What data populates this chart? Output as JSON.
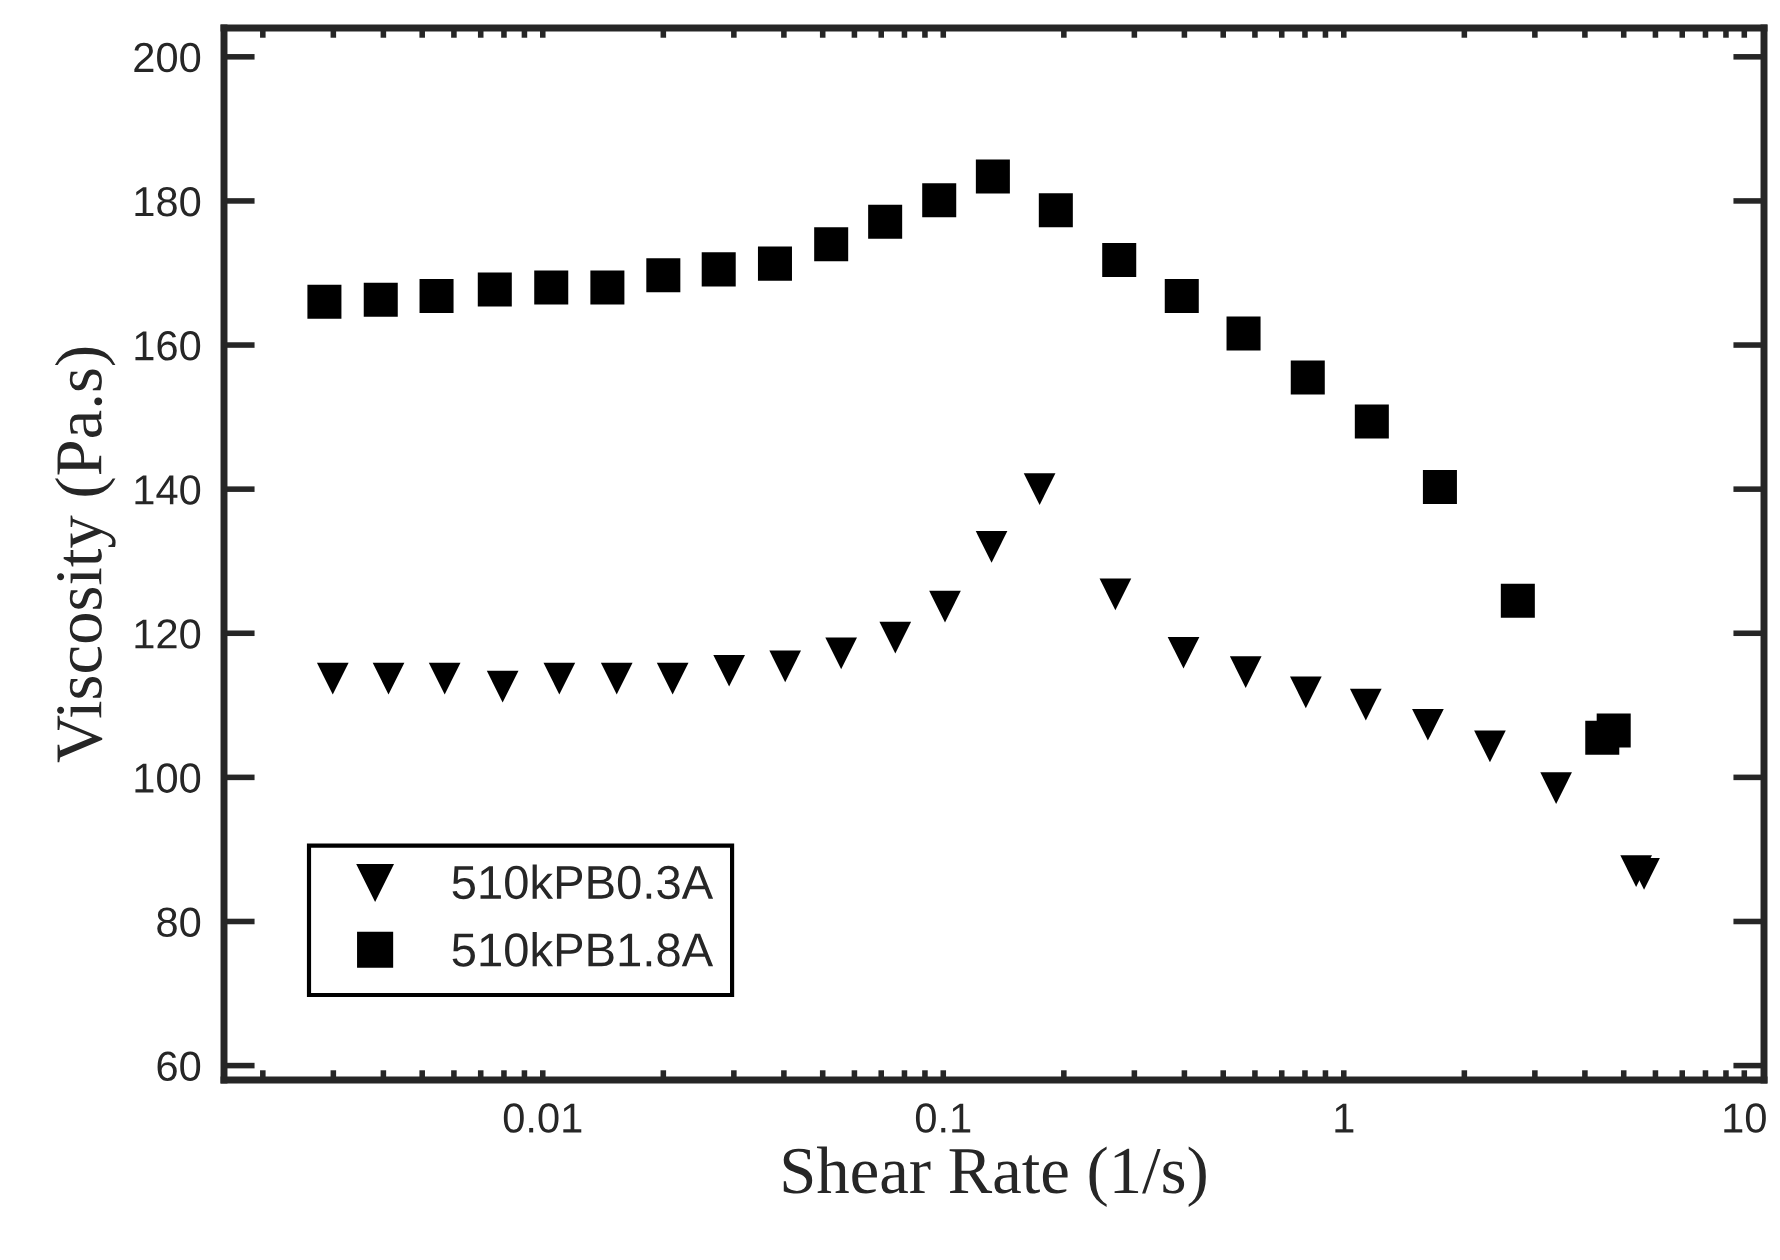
{
  "chart_data": {
    "type": "scatter",
    "xlabel": "Shear Rate (1/s)",
    "ylabel": "Viscosity (Pa.s)",
    "log": "x",
    "xlim": [
      0.0016,
      11.2
    ],
    "ylim": [
      58,
      204
    ],
    "xticks": [
      {
        "value": 0.002,
        "label": null
      },
      {
        "value": 0.003,
        "label": null
      },
      {
        "value": 0.004,
        "label": null
      },
      {
        "value": 0.005,
        "label": null
      },
      {
        "value": 0.006,
        "label": null
      },
      {
        "value": 0.007,
        "label": null
      },
      {
        "value": 0.008,
        "label": null
      },
      {
        "value": 0.009,
        "label": null
      },
      0.01,
      {
        "value": 0.02,
        "label": null
      },
      {
        "value": 0.03,
        "label": null
      },
      {
        "value": 0.04,
        "label": null
      },
      {
        "value": 0.05,
        "label": null
      },
      {
        "value": 0.06,
        "label": null
      },
      {
        "value": 0.07,
        "label": null
      },
      {
        "value": 0.08,
        "label": null
      },
      {
        "value": 0.09,
        "label": null
      },
      0.1,
      {
        "value": 0.2,
        "label": null
      },
      {
        "value": 0.3,
        "label": null
      },
      {
        "value": 0.4,
        "label": null
      },
      {
        "value": 0.5,
        "label": null
      },
      {
        "value": 0.6,
        "label": null
      },
      {
        "value": 0.7,
        "label": null
      },
      {
        "value": 0.8,
        "label": null
      },
      {
        "value": 0.9,
        "label": null
      },
      1,
      {
        "value": 2,
        "label": null
      },
      {
        "value": 3,
        "label": null
      },
      {
        "value": 4,
        "label": null
      },
      {
        "value": 5,
        "label": null
      },
      {
        "value": 6,
        "label": null
      },
      {
        "value": 7,
        "label": null
      },
      {
        "value": 8,
        "label": null
      },
      {
        "value": 9,
        "label": null
      },
      10
    ],
    "yticks": [
      60,
      80,
      100,
      120,
      140,
      160,
      180,
      200
    ],
    "grid": false,
    "legend": "bottom left",
    "series": [
      {
        "name": "510kPB0.3A",
        "color": "#000000",
        "marker": "triangle",
        "x": [
          0.00299,
          0.00412,
          0.00569,
          0.00794,
          0.011,
          0.0153,
          0.0211,
          0.0292,
          0.0403,
          0.0556,
          0.0759,
          0.101,
          0.132,
          0.174,
          0.269,
          0.398,
          0.569,
          0.804,
          1.135,
          1.622,
          2.317,
          3.39,
          5.37,
          5.62
        ],
        "values": [
          113.7,
          113.7,
          113.7,
          112.6,
          113.7,
          113.7,
          113.7,
          114.8,
          115.4,
          117.2,
          119.4,
          123.7,
          132.0,
          140.0,
          125.4,
          117.3,
          114.6,
          111.8,
          110.1,
          107.3,
          104.3,
          98.5,
          87.0,
          86.6
        ]
      },
      {
        "name": "510kPB1.8A",
        "color": "#000000",
        "marker": "square",
        "x": [
          0.00285,
          0.00394,
          0.00543,
          0.00759,
          0.0105,
          0.0145,
          0.02,
          0.0275,
          0.038,
          0.0525,
          0.0716,
          0.0977,
          0.133,
          0.191,
          0.275,
          0.394,
          0.562,
          0.813,
          1.175,
          1.738,
          2.72,
          4.42,
          4.72
        ],
        "values": [
          166.0,
          166.3,
          166.8,
          167.7,
          168.0,
          168.0,
          169.7,
          170.5,
          171.3,
          174.0,
          177.1,
          180.1,
          183.4,
          178.7,
          171.8,
          166.8,
          161.6,
          155.5,
          149.4,
          140.3,
          124.5,
          105.5,
          106.5
        ]
      }
    ]
  }
}
